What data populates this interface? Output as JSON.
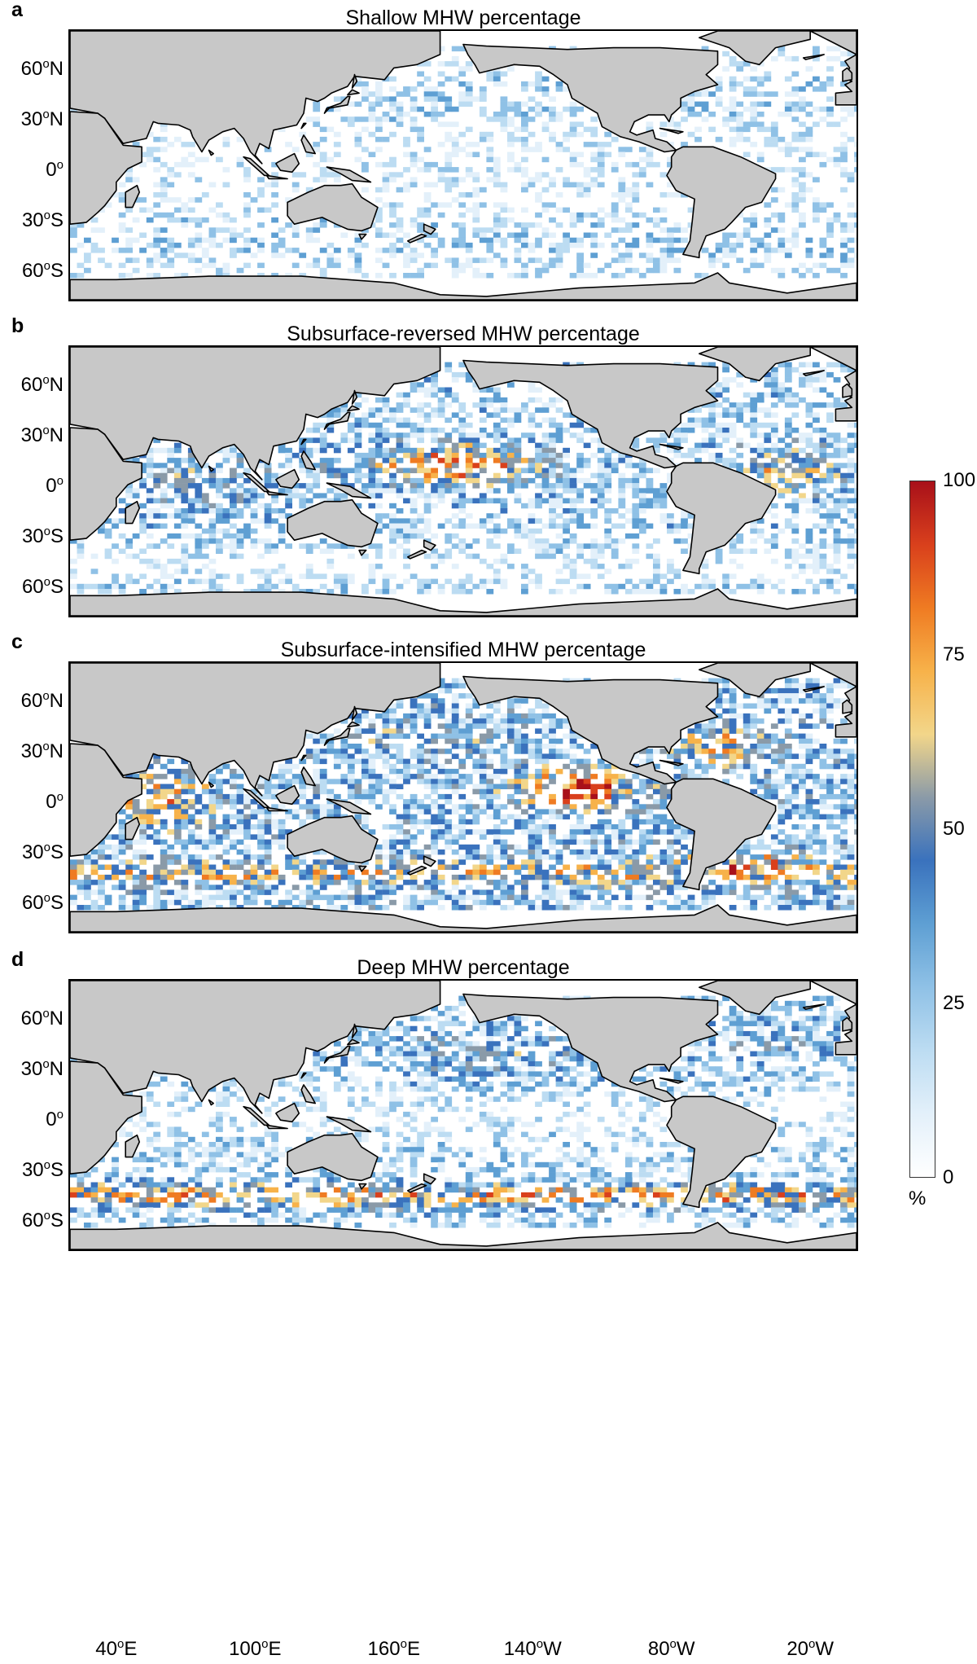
{
  "panels": [
    {
      "id": "a",
      "letter": "a",
      "title": "Shallow MHW percentage",
      "pattern": "shallow"
    },
    {
      "id": "b",
      "letter": "b",
      "title": "Subsurface-reversed MHW percentage",
      "pattern": "reversed"
    },
    {
      "id": "c",
      "letter": "c",
      "title": "Subsurface-intensified MHW percentage",
      "pattern": "intensified"
    },
    {
      "id": "d",
      "letter": "d",
      "title": "Deep MHW percentage",
      "pattern": "deep"
    }
  ],
  "lat_labels": [
    {
      "num": "60",
      "deg": "o",
      "hem": "N",
      "value": 60
    },
    {
      "num": "30",
      "deg": "o",
      "hem": "N",
      "value": 30
    },
    {
      "num": "0",
      "deg": "o",
      "hem": "",
      "value": 0
    },
    {
      "num": "30",
      "deg": "o",
      "hem": "S",
      "value": -30
    },
    {
      "num": "60",
      "deg": "o",
      "hem": "S",
      "value": -60
    }
  ],
  "lon_labels": [
    {
      "num": "40",
      "deg": "o",
      "hem": "E",
      "value": 40
    },
    {
      "num": "100",
      "deg": "o",
      "hem": "E",
      "value": 100
    },
    {
      "num": "160",
      "deg": "o",
      "hem": "E",
      "value": 160
    },
    {
      "num": "140",
      "deg": "o",
      "hem": "W",
      "value": 220
    },
    {
      "num": "80",
      "deg": "o",
      "hem": "W",
      "value": 280
    },
    {
      "num": "20",
      "deg": "o",
      "hem": "W",
      "value": 340
    }
  ],
  "colorbar": {
    "ticks": [
      "100",
      "75",
      "50",
      "25",
      "0"
    ],
    "unit": "%",
    "range": [
      0,
      100
    ]
  },
  "colors": {
    "land": "#c8c8c8",
    "coast": "#000000",
    "ocean": "#ffffff",
    "cmap": [
      "#ffffff",
      "#e3f0fa",
      "#bcdcf2",
      "#8fc1e6",
      "#5e9fd3",
      "#3a72bd",
      "#8a9aa8",
      "#f2d68a",
      "#f7b24a",
      "#ef7b22",
      "#d9401c",
      "#a8101a"
    ]
  },
  "map": {
    "lon_range": [
      20,
      360
    ],
    "lat_range": [
      -80,
      80
    ],
    "projection": "equirectangular"
  }
}
